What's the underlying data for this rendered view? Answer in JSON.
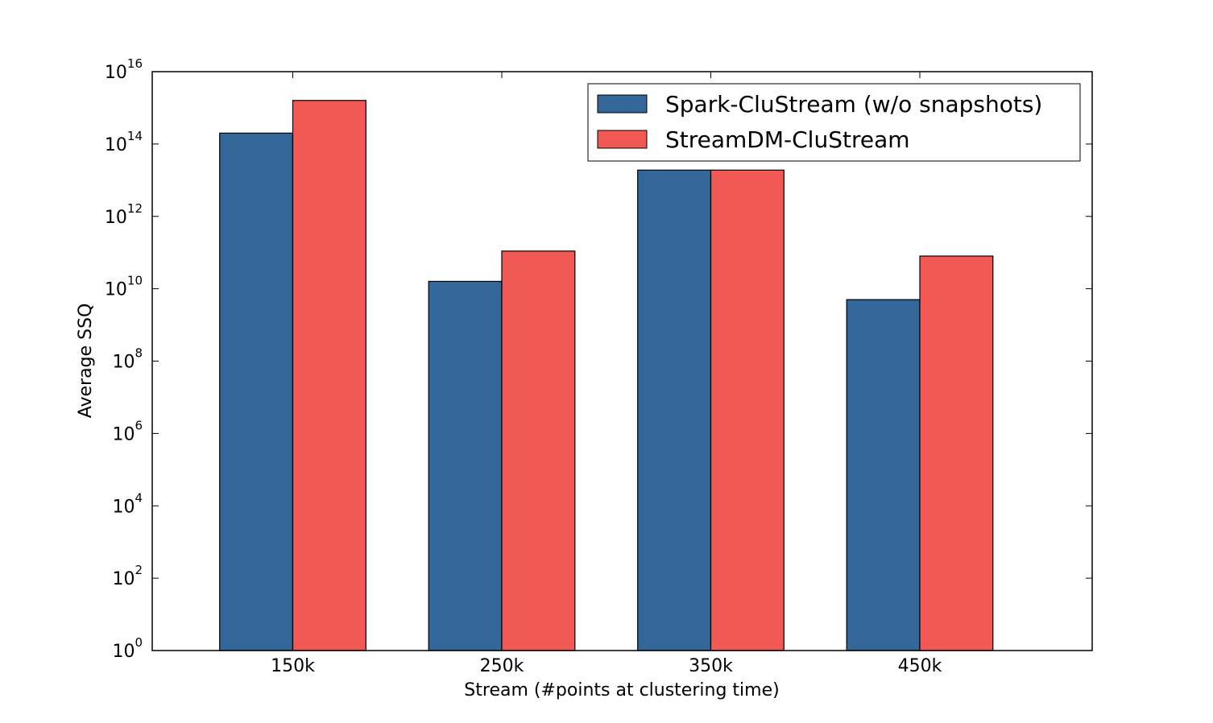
{
  "chart_data": {
    "type": "bar",
    "title": "",
    "xlabel": "Stream (#points at clustering time)",
    "ylabel": "Average SSQ",
    "yscale": "log",
    "ylim": [
      1,
      1e+16
    ],
    "y_ticks": [
      {
        "base": "10",
        "exp": "0"
      },
      {
        "base": "10",
        "exp": "2"
      },
      {
        "base": "10",
        "exp": "4"
      },
      {
        "base": "10",
        "exp": "6"
      },
      {
        "base": "10",
        "exp": "8"
      },
      {
        "base": "10",
        "exp": "10"
      },
      {
        "base": "10",
        "exp": "12"
      },
      {
        "base": "10",
        "exp": "14"
      },
      {
        "base": "10",
        "exp": "16"
      }
    ],
    "categories": [
      "150k",
      "250k",
      "350k",
      "450k"
    ],
    "series": [
      {
        "name": "Spark-CluStream (w/o snapshots)",
        "color": "#336699",
        "values": [
          200000000000000.0,
          16000000000.0,
          19000000000000.0,
          5000000000.0
        ]
      },
      {
        "name": "StreamDM-CluStream",
        "color": "#F25954",
        "values": [
          1600000000000000.0,
          110000000000.0,
          19000000000000.0,
          80000000000.0
        ]
      }
    ],
    "legend_position": "top-right",
    "grid": false
  }
}
